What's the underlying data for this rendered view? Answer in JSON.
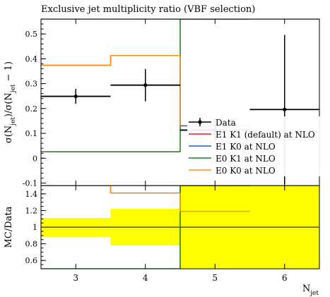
{
  "chart_data": [
    {
      "type": "line",
      "panel": "main",
      "title": "Exclusive jet multiplicity ratio (VBF selection)",
      "xlabel": "",
      "ylabel": "σ(N_jet)/σ(N_jet − 1)",
      "xlim": [
        2.5,
        6.5
      ],
      "ylim": [
        -0.11,
        0.56
      ],
      "yticks": [
        -0.1,
        0,
        0.1,
        0.2,
        0.3,
        0.4,
        0.5
      ],
      "ytick_labels": [
        "-0.1",
        "0",
        "0.1",
        "0.2",
        "0.3",
        "0.4",
        "0.5"
      ],
      "bin_edges": [
        2.5,
        3.5,
        4.5,
        5.5,
        6.5
      ],
      "bin_centers": [
        3,
        4,
        5,
        6
      ],
      "series": [
        {
          "name": "Data",
          "kind": "points",
          "color": "#000000",
          "y": [
            0.249,
            0.294,
            0.113,
            0.196
          ],
          "yerr": [
            0.03,
            0.065,
            0.045,
            0.3
          ]
        },
        {
          "name": "E1 K1 (default) at NLO",
          "kind": "hist",
          "color": "#ee1c25",
          "values": [
            0.56,
            0.56,
            0.56,
            0.56
          ]
        },
        {
          "name": "E1 K0 at NLO",
          "kind": "hist",
          "color": "#1e5ecf",
          "values": [
            0.374,
            0.413,
            0.13,
            null
          ]
        },
        {
          "name": "E0 K1 at NLO",
          "kind": "hist",
          "color": "#1f7a1f",
          "values": [
            0.026,
            0.026,
            0.56,
            null
          ]
        },
        {
          "name": "E0 K0 at NLO",
          "kind": "hist",
          "color": "#f7941d",
          "values": [
            0.374,
            0.413,
            0.132,
            null
          ]
        }
      ],
      "legend": {
        "position": "right",
        "entries": [
          "Data",
          "E1 K1 (default) at NLO",
          "E1 K0 at NLO",
          "E0 K1 at NLO",
          "E0 K0 at NLO"
        ]
      }
    },
    {
      "type": "line",
      "panel": "ratio",
      "xlabel": "N_jet",
      "ylabel": "MC/Data",
      "xlim": [
        2.5,
        6.5
      ],
      "ylim": [
        0.5,
        1.5
      ],
      "yticks": [
        0.6,
        0.8,
        1.0,
        1.2,
        1.4
      ],
      "ytick_labels": [
        "0.6",
        "0.8",
        "1",
        "1.2",
        "1.4"
      ],
      "xticks": [
        3,
        4,
        5,
        6
      ],
      "xtick_labels": [
        "3",
        "4",
        "5",
        "6"
      ],
      "data_uncertainty_band": {
        "color": "#ffff00",
        "lower": [
          0.88,
          0.78,
          0.5,
          0.5
        ],
        "upper": [
          1.11,
          1.22,
          1.5,
          1.5
        ]
      },
      "series": [
        {
          "name": "E1 K1 (default) at NLO",
          "color": "#ee1c25",
          "values": [
            1.5,
            1.5,
            1.5,
            1.5
          ]
        },
        {
          "name": "E1 K0 at NLO",
          "color": "#1e5ecf",
          "values": [
            1.5,
            1.41,
            1.5,
            null
          ]
        },
        {
          "name": "E0 K1 at NLO",
          "color": "#1f7a1f",
          "values": [
            0.5,
            0.5,
            1.5,
            null
          ]
        },
        {
          "name": "E0 K0 at NLO",
          "color": "#f7941d",
          "values": [
            1.5,
            1.41,
            1.19,
            null
          ]
        }
      ]
    }
  ]
}
